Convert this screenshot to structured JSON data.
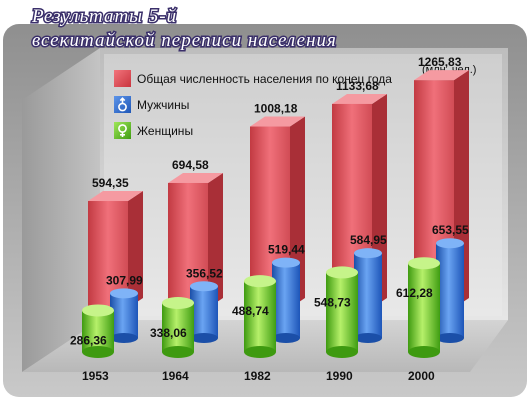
{
  "chart_data": {
    "type": "bar",
    "title": "Результаты 5-й всекитайской переписи населения",
    "title_lines": [
      "Результаты 5-й",
      "всекитайской  переписи  населения"
    ],
    "unit": "(млн. чел.)",
    "categories": [
      "1953",
      "1964",
      "1982",
      "1990",
      "2000"
    ],
    "series": [
      {
        "name": "Общая численность населения по конец года",
        "values": [
          594.35,
          694.58,
          1008.18,
          1133.68,
          1265.83
        ],
        "labels": [
          "594,35",
          "694,58",
          "1008,18",
          "1133,68",
          "1265,83"
        ],
        "color": "#e0474f"
      },
      {
        "name": "Мужчины",
        "values": [
          307.99,
          356.52,
          519.44,
          584.95,
          653.55
        ],
        "labels": [
          "307,99",
          "356,52",
          "519,44",
          "584,95",
          "653,55"
        ],
        "color": "#2f6fd6"
      },
      {
        "name": "Женщины",
        "values": [
          286.36,
          338.06,
          488.74,
          548.73,
          612.28
        ],
        "labels": [
          "286,36",
          "338,06",
          "488,74",
          "548,73",
          "612,28"
        ],
        "color": "#5fcc1c"
      }
    ],
    "legend_icons": [
      "square",
      "male-symbol-icon",
      "female-symbol-icon"
    ],
    "legend_position": "top-left",
    "ylim": [
      0,
      1300
    ],
    "grid": false
  }
}
